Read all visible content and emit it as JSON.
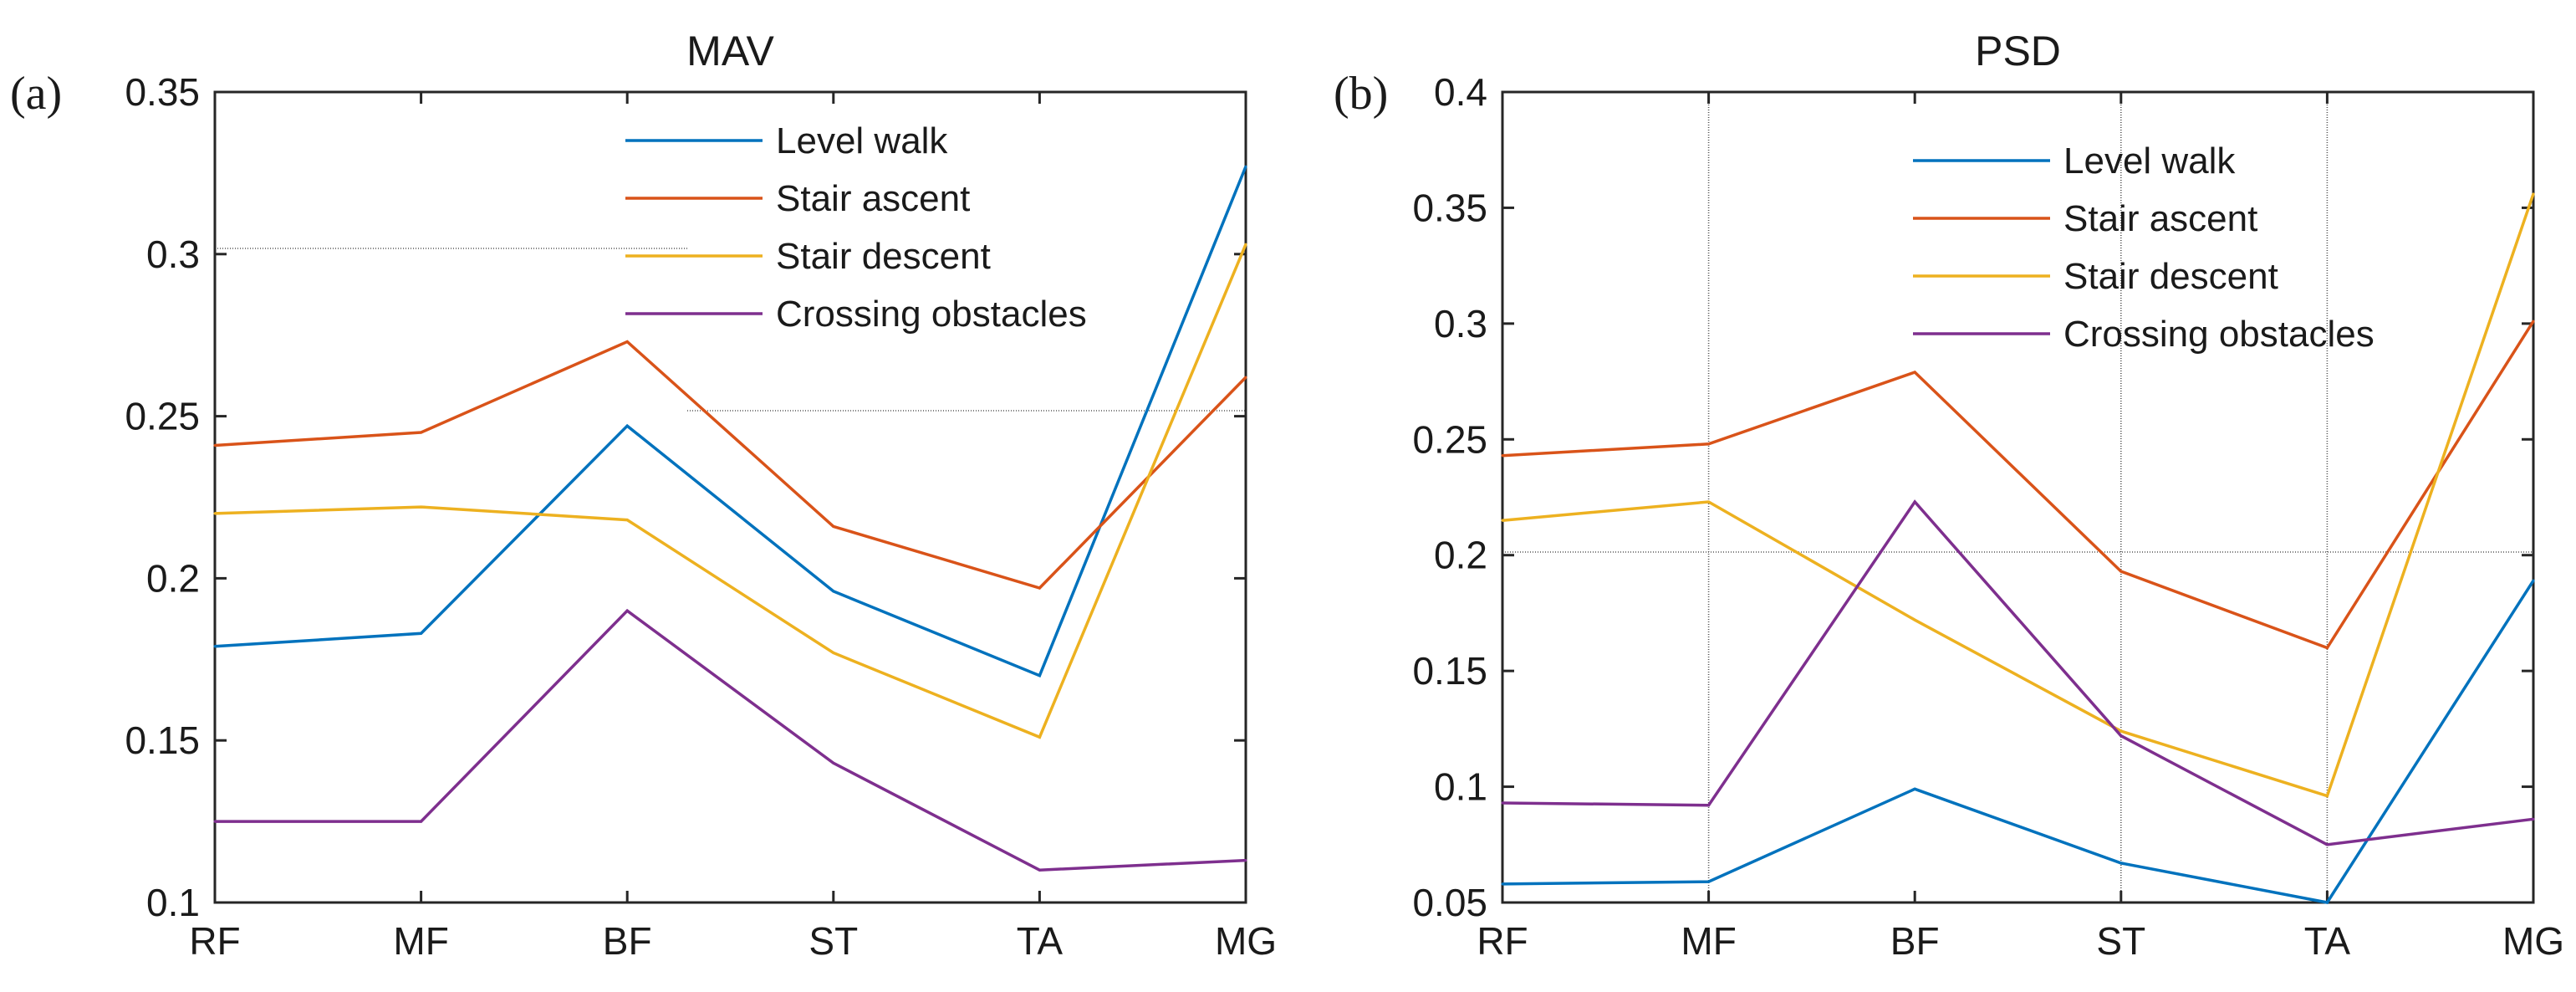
{
  "chart_data": [
    {
      "type": "line",
      "panel_label": "(a)",
      "title": "MAV",
      "categories": [
        "RF",
        "MF",
        "BF",
        "ST",
        "TA",
        "MG"
      ],
      "ylim": [
        0.1,
        0.35
      ],
      "yticks": [
        0.1,
        0.15,
        0.2,
        0.25,
        0.3,
        0.35
      ],
      "ytick_labels": [
        "0.1",
        "0.15",
        "0.2",
        "0.25",
        "0.3",
        "0.35"
      ],
      "legend_position": "top-center",
      "series": [
        {
          "name": "Level walk",
          "color": "#0072BD",
          "values": [
            0.179,
            0.183,
            0.247,
            0.196,
            0.17,
            0.327
          ]
        },
        {
          "name": "Stair ascent",
          "color": "#D95319",
          "values": [
            0.241,
            0.245,
            0.273,
            0.216,
            0.197,
            0.262
          ]
        },
        {
          "name": "Stair descent",
          "color": "#EDB120",
          "values": [
            0.22,
            0.222,
            0.218,
            0.177,
            0.151,
            0.303
          ]
        },
        {
          "name": "Crossing obstacles",
          "color": "#7E2F8E",
          "values": [
            0.125,
            0.125,
            0.19,
            0.143,
            0.11,
            0.113
          ]
        }
      ]
    },
    {
      "type": "line",
      "panel_label": "(b)",
      "title": "PSD",
      "categories": [
        "RF",
        "MF",
        "BF",
        "ST",
        "TA",
        "MG"
      ],
      "ylim": [
        0.05,
        0.4
      ],
      "yticks": [
        0.05,
        0.1,
        0.15,
        0.2,
        0.25,
        0.3,
        0.35,
        0.4
      ],
      "ytick_labels": [
        "0.05",
        "0.1",
        "0.15",
        "0.2",
        "0.25",
        "0.3",
        "0.35",
        "0.4"
      ],
      "legend_position": "top-center",
      "series": [
        {
          "name": "Level walk",
          "color": "#0072BD",
          "values": [
            0.058,
            0.059,
            0.099,
            0.067,
            0.05,
            0.189
          ]
        },
        {
          "name": "Stair ascent",
          "color": "#D95319",
          "values": [
            0.243,
            0.248,
            0.279,
            0.193,
            0.16,
            0.301
          ]
        },
        {
          "name": "Stair descent",
          "color": "#EDB120",
          "values": [
            0.215,
            0.223,
            0.172,
            0.124,
            0.096,
            0.356
          ]
        },
        {
          "name": "Crossing obstacles",
          "color": "#7E2F8E",
          "values": [
            0.093,
            0.092,
            0.223,
            0.122,
            0.075,
            0.086
          ]
        }
      ]
    }
  ]
}
